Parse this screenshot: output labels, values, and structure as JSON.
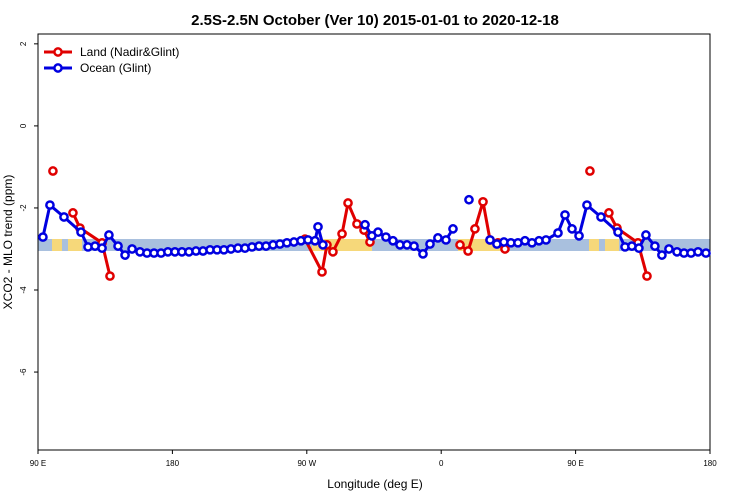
{
  "chart_data": {
    "type": "line",
    "title": "2.5S-2.5N October (Ver 10)   2015-01-01 to 2020-12-18",
    "xlabel": "Longitude (deg E)",
    "ylabel": "XCO2 - MLO trend (ppm)",
    "xlim": [
      90,
      540
    ],
    "ylim": [
      -7.9,
      2.24
    ],
    "xticks": [
      {
        "value": 90,
        "label": "90 E"
      },
      {
        "value": 180,
        "label": "180"
      },
      {
        "value": 270,
        "label": "90 W"
      },
      {
        "value": 360,
        "label": "0"
      },
      {
        "value": 450,
        "label": "90 E"
      },
      {
        "value": 540,
        "label": "180"
      }
    ],
    "yticks": [
      -6,
      -4,
      -2,
      0,
      2
    ],
    "legend": "top-left",
    "series": [
      {
        "name": "Land (Nadir&Glint)",
        "color": "#e00000",
        "x": [
          100.0,
          null,
          113.4,
          118.1,
          132.9,
          138.2,
          null,
          268.8,
          280.2,
          283.5,
          287.5,
          293.6,
          297.6,
          303.6,
          308.3,
          312.3,
          null,
          372.6,
          378.0,
          382.6,
          388.0,
          392.7,
          398.0,
          402.7,
          null,
          459.6,
          null,
          472.3,
          477.7,
          491.8,
          497.8
        ],
        "values": [
          -1.1,
          null,
          -2.12,
          -2.49,
          -2.85,
          -3.66,
          null,
          -2.76,
          -3.56,
          -2.9,
          -3.07,
          -2.63,
          -1.88,
          -2.39,
          -2.54,
          -2.83,
          null,
          -2.9,
          -3.05,
          -2.51,
          -1.85,
          -2.78,
          -2.85,
          -3.0,
          null,
          -1.1,
          null,
          -2.12,
          -2.49,
          -2.85,
          -3.66
        ]
      },
      {
        "name": "Ocean (Glint)",
        "color": "#0000e0",
        "x": [
          93.3,
          98.0,
          107.4,
          118.8,
          123.5,
          128.2,
          132.9,
          137.5,
          143.6,
          148.3,
          153.0,
          158.3,
          163.0,
          167.7,
          172.4,
          177.0,
          181.7,
          186.4,
          191.1,
          195.8,
          200.5,
          205.2,
          209.9,
          214.5,
          219.2,
          223.9,
          228.6,
          233.3,
          238.0,
          242.7,
          247.4,
          252.0,
          256.7,
          261.4,
          266.1,
          270.8,
          275.5,
          277.5,
          280.8,
          null,
          309.0,
          313.6,
          317.7,
          323.0,
          327.7,
          332.4,
          337.1,
          341.8,
          347.8,
          352.5,
          357.8,
          363.2,
          367.9,
          null,
          378.6,
          null,
          392.7,
          397.3,
          402.0,
          406.7,
          411.4,
          416.1,
          420.8,
          425.5,
          430.2,
          438.2,
          442.9,
          447.6,
          452.3,
          457.6,
          467.0,
          478.4,
          483.1,
          487.7,
          492.4,
          497.1,
          503.1,
          507.8,
          512.5,
          517.9,
          522.6,
          527.3,
          532.0,
          537.3
        ],
        "values": [
          -2.71,
          -1.93,
          -2.22,
          -2.59,
          -2.95,
          -2.93,
          -2.98,
          -2.66,
          -2.93,
          -3.15,
          -3.0,
          -3.07,
          -3.1,
          -3.1,
          -3.1,
          -3.07,
          -3.07,
          -3.07,
          -3.07,
          -3.05,
          -3.05,
          -3.02,
          -3.02,
          -3.02,
          -3.0,
          -2.98,
          -2.98,
          -2.95,
          -2.93,
          -2.93,
          -2.9,
          -2.88,
          -2.85,
          -2.83,
          -2.8,
          -2.78,
          -2.8,
          -2.46,
          -2.9,
          null,
          -2.41,
          -2.68,
          -2.59,
          -2.71,
          -2.8,
          -2.9,
          -2.9,
          -2.93,
          -3.12,
          -2.88,
          -2.73,
          -2.78,
          -2.51,
          null,
          -1.8,
          null,
          -2.78,
          -2.88,
          -2.83,
          -2.85,
          -2.85,
          -2.8,
          -2.85,
          -2.8,
          -2.78,
          -2.61,
          -2.17,
          -2.51,
          -2.68,
          -1.93,
          -2.22,
          -2.59,
          -2.95,
          -2.93,
          -2.98,
          -2.66,
          -2.93,
          -3.15,
          -3.0,
          -3.07,
          -3.1,
          -3.1,
          -3.07,
          -3.1
        ]
      }
    ]
  }
}
